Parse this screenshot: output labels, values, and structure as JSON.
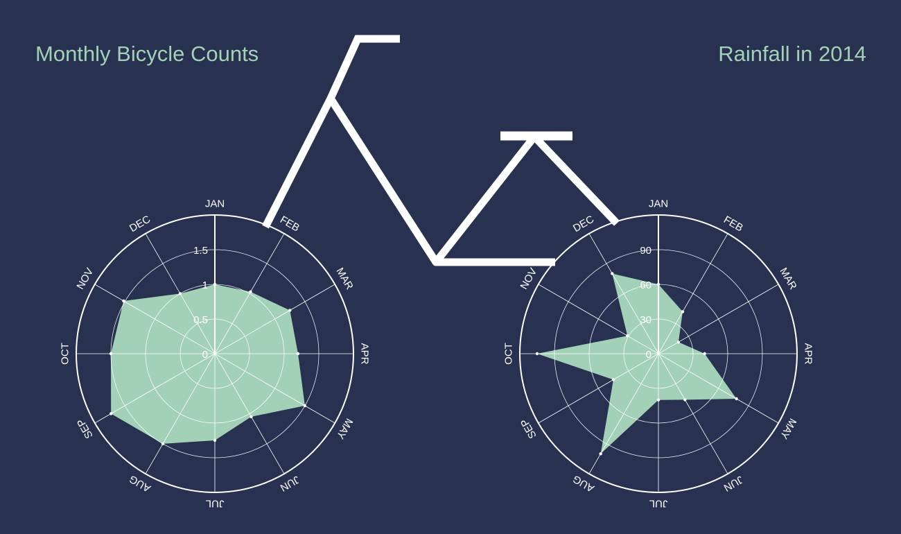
{
  "colors": {
    "background": "#283250",
    "fill": "#a3d1b7",
    "line": "#ffffff",
    "title": "#a3d1b7"
  },
  "chart_data": [
    {
      "type": "radar",
      "title": "Monthly Bicycle Counts",
      "categories": [
        "JAN",
        "FEB",
        "MAR",
        "APR",
        "MAY",
        "JUN",
        "JUL",
        "AUG",
        "SEP",
        "OCT",
        "NOV",
        "DEC"
      ],
      "values": [
        1.0,
        1.03,
        1.25,
        1.2,
        1.5,
        1.05,
        1.25,
        1.5,
        1.73,
        1.5,
        1.52,
        1.0
      ],
      "rlim": [
        0,
        2
      ],
      "radial_ticks": [
        "0",
        "0.5",
        "1",
        "1.5"
      ],
      "grid": true
    },
    {
      "type": "radar",
      "title": "Rainfall in 2014",
      "categories": [
        "JAN",
        "FEB",
        "MAR",
        "APR",
        "MAY",
        "JUN",
        "JUL",
        "AUG",
        "SEP",
        "OCT",
        "NOV",
        "DEC"
      ],
      "values": [
        60,
        42,
        20,
        40,
        78,
        46,
        40,
        100,
        45,
        105,
        31,
        80
      ],
      "rlim": [
        0,
        120
      ],
      "radial_ticks": [
        "0",
        "30",
        "60",
        "90"
      ],
      "grid": true
    }
  ]
}
